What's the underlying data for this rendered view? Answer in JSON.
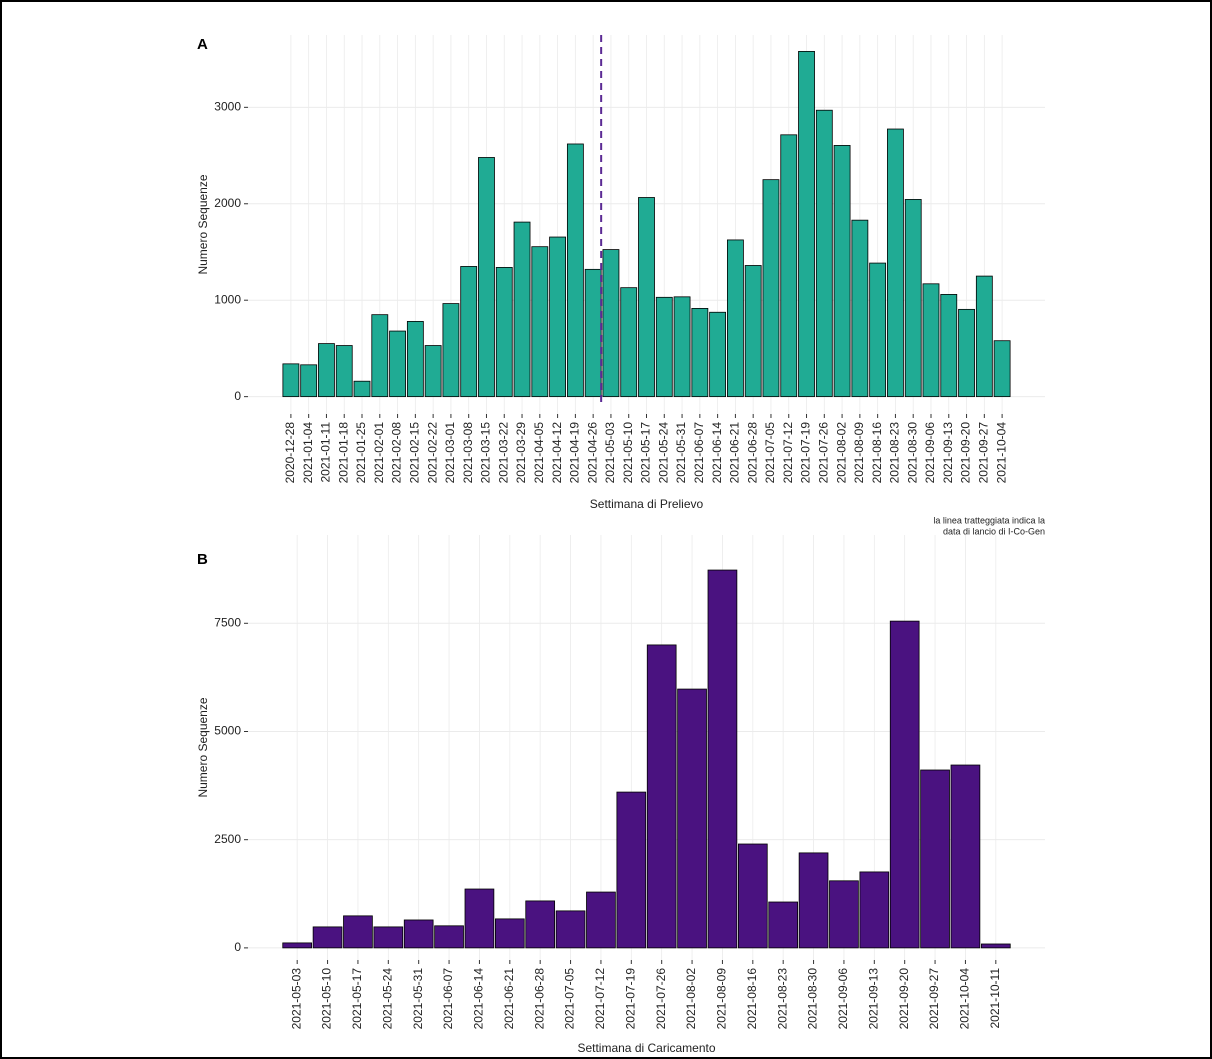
{
  "chart_data": [
    {
      "type": "bar",
      "panel_label": "A",
      "ylabel": "Numero Sequenze",
      "xlabel": "Settimana di Prelievo",
      "categories": [
        "2020-12-28",
        "2021-01-04",
        "2021-01-11",
        "2021-01-18",
        "2021-01-25",
        "2021-02-01",
        "2021-02-08",
        "2021-02-15",
        "2021-02-22",
        "2021-03-01",
        "2021-03-08",
        "2021-03-15",
        "2021-03-22",
        "2021-03-29",
        "2021-04-05",
        "2021-04-12",
        "2021-04-19",
        "2021-04-26",
        "2021-05-03",
        "2021-05-10",
        "2021-05-17",
        "2021-05-24",
        "2021-05-31",
        "2021-06-07",
        "2021-06-14",
        "2021-06-21",
        "2021-06-28",
        "2021-07-05",
        "2021-07-12",
        "2021-07-19",
        "2021-07-26",
        "2021-08-02",
        "2021-08-09",
        "2021-08-16",
        "2021-08-23",
        "2021-08-30",
        "2021-09-06",
        "2021-09-13",
        "2021-09-20",
        "2021-09-27",
        "2021-10-04"
      ],
      "values": [
        340,
        330,
        550,
        530,
        160,
        850,
        680,
        780,
        530,
        965,
        1350,
        2480,
        1340,
        1810,
        1555,
        1655,
        2620,
        1320,
        1525,
        1130,
        2065,
        1030,
        1035,
        915,
        875,
        1625,
        1360,
        2250,
        2715,
        3580,
        2970,
        2605,
        1830,
        1385,
        2775,
        2045,
        1170,
        1060,
        905,
        1250,
        580
      ],
      "color": "#20ab94",
      "ylim": [
        -180,
        3750
      ],
      "yticks": [
        0,
        1000,
        2000,
        3000
      ],
      "grid": true,
      "vline_category": "2021-04-26",
      "vline_color": "#5b2a94",
      "caption": [
        "la linea tratteggiata indica la",
        "data di lancio di I-Co-Gen"
      ]
    },
    {
      "type": "bar",
      "panel_label": "B",
      "ylabel": "Numero Sequenze",
      "xlabel": "Settimana di Caricamento",
      "categories": [
        "2021-05-03",
        "2021-05-10",
        "2021-05-17",
        "2021-05-24",
        "2021-05-31",
        "2021-06-07",
        "2021-06-14",
        "2021-06-21",
        "2021-06-28",
        "2021-07-05",
        "2021-07-12",
        "2021-07-19",
        "2021-07-26",
        "2021-08-02",
        "2021-08-09",
        "2021-08-16",
        "2021-08-23",
        "2021-08-30",
        "2021-09-06",
        "2021-09-13",
        "2021-09-20",
        "2021-09-27",
        "2021-10-04",
        "2021-10-11"
      ],
      "values": [
        115,
        485,
        740,
        485,
        645,
        510,
        1360,
        670,
        1085,
        855,
        1290,
        3600,
        7000,
        5980,
        8730,
        2400,
        1060,
        2195,
        1550,
        1755,
        7550,
        4110,
        4225,
        90
      ],
      "color": "#4a1280",
      "ylim": [
        -280,
        9540
      ],
      "yticks": [
        0,
        2500,
        5000,
        7500
      ],
      "grid": true
    }
  ]
}
